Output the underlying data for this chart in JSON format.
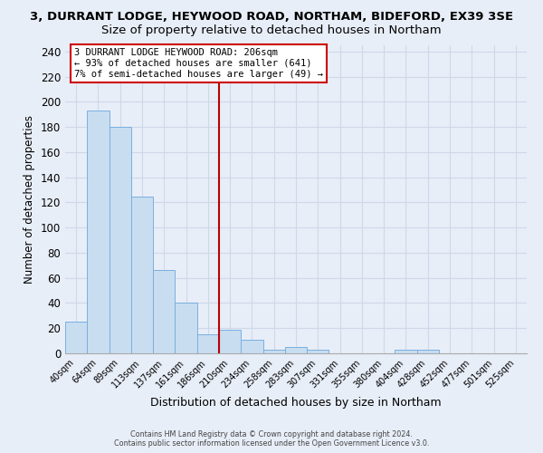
{
  "title_line1": "3, DURRANT LODGE, HEYWOOD ROAD, NORTHAM, BIDEFORD, EX39 3SE",
  "title_line2": "Size of property relative to detached houses in Northam",
  "xlabel": "Distribution of detached houses by size in Northam",
  "ylabel": "Number of detached properties",
  "bar_labels": [
    "40sqm",
    "64sqm",
    "89sqm",
    "113sqm",
    "137sqm",
    "161sqm",
    "186sqm",
    "210sqm",
    "234sqm",
    "258sqm",
    "283sqm",
    "307sqm",
    "331sqm",
    "355sqm",
    "380sqm",
    "404sqm",
    "428sqm",
    "452sqm",
    "477sqm",
    "501sqm",
    "525sqm"
  ],
  "bar_values": [
    25,
    193,
    180,
    125,
    66,
    40,
    15,
    19,
    11,
    3,
    5,
    3,
    0,
    0,
    0,
    3,
    3,
    0,
    0,
    0,
    0
  ],
  "bar_color": "#c8ddf0",
  "bar_edge_color": "#7aafe0",
  "vline_color": "#bb0000",
  "vline_index": 7,
  "ylim": [
    0,
    245
  ],
  "yticks": [
    0,
    20,
    40,
    60,
    80,
    100,
    120,
    140,
    160,
    180,
    200,
    220,
    240
  ],
  "annotation_line1": "3 DURRANT LODGE HEYWOOD ROAD: 206sqm",
  "annotation_line2": "← 93% of detached houses are smaller (641)",
  "annotation_line3": "7% of semi-detached houses are larger (49) →",
  "annotation_box_color": "#ffffff",
  "annotation_border_color": "#cc0000",
  "footer_line1": "Contains HM Land Registry data © Crown copyright and database right 2024.",
  "footer_line2": "Contains public sector information licensed under the Open Government Licence v3.0.",
  "bg_color": "#e8eef8",
  "grid_color": "#d0d8e8",
  "title1_fontsize": 9.5,
  "title2_fontsize": 9.5
}
